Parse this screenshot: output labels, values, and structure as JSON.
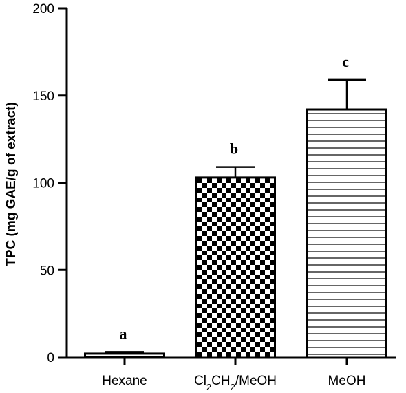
{
  "chart_data": {
    "type": "bar",
    "categories": [
      "Hexane",
      "Cl2CH2/MeOH",
      "MeOH"
    ],
    "category_labels": [
      {
        "parts": [
          {
            "t": "Hexane"
          }
        ]
      },
      {
        "parts": [
          {
            "t": "Cl"
          },
          {
            "t": "2",
            "sub": true
          },
          {
            "t": "CH"
          },
          {
            "t": "2",
            "sub": true
          },
          {
            "t": "/MeOH"
          }
        ]
      },
      {
        "parts": [
          {
            "t": "MeOH"
          }
        ]
      }
    ],
    "values": [
      2,
      103,
      142
    ],
    "errors": [
      1,
      6,
      17
    ],
    "significance": [
      "a",
      "b",
      "c"
    ],
    "patterns": [
      "dense-lines",
      "checkerboard",
      "horizontal-lines"
    ],
    "title": "",
    "xlabel": "",
    "ylabel": "TPC (mg GAE/g of extract)",
    "ylim": [
      0,
      200
    ],
    "yticks": [
      0,
      50,
      100,
      150,
      200
    ],
    "grid": false,
    "colors": {
      "stroke": "#000000",
      "fill": "#ffffff"
    }
  }
}
